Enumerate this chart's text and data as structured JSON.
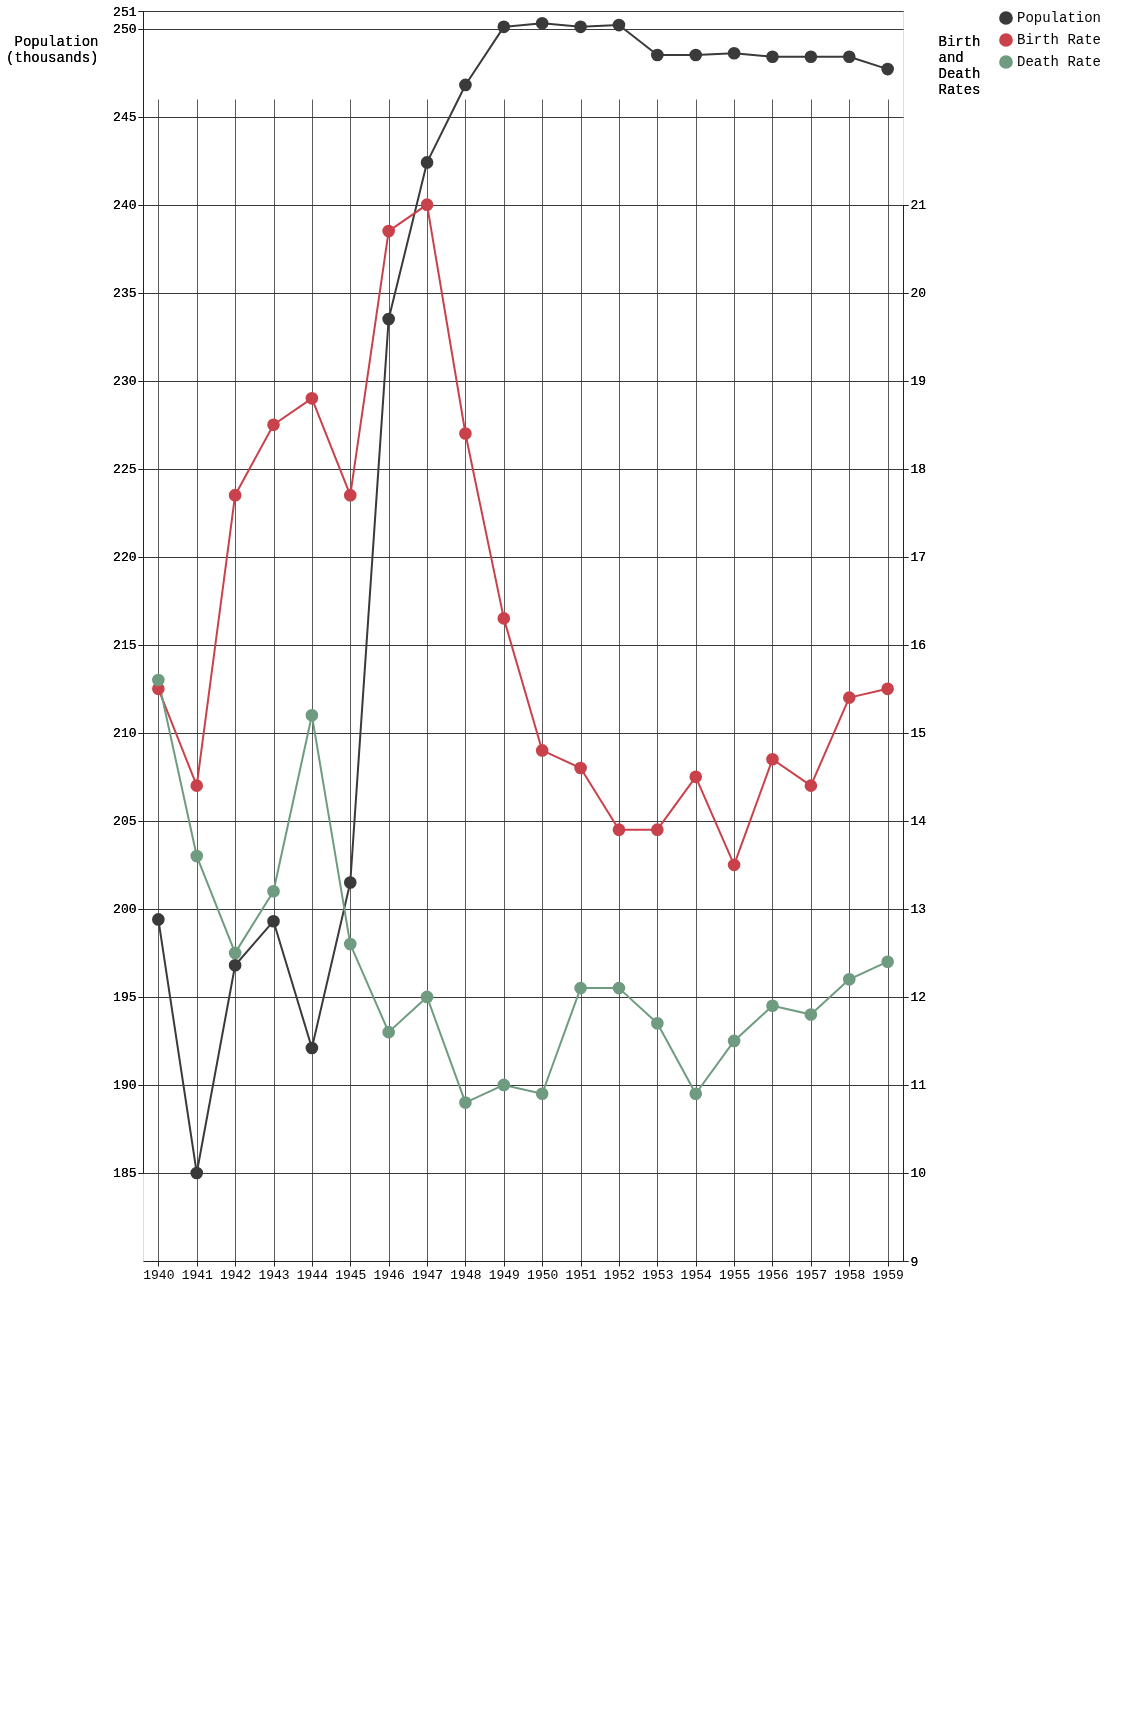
{
  "chart_data": {
    "type": "line",
    "ylabel": "Population (thousands)",
    "y2label": "Birth and Death Rates",
    "categories": [
      "1940",
      "1941",
      "1942",
      "1943",
      "1944",
      "1945",
      "1946",
      "1947",
      "1948",
      "1949",
      "1950",
      "1951",
      "1952",
      "1953",
      "1954",
      "1955",
      "1956",
      "1957",
      "1958",
      "1959"
    ],
    "series": [
      {
        "name": "Population",
        "color": "#3a3a3a",
        "values": [
          199.4,
          185.0,
          196.8,
          199.3,
          192.1,
          201.5,
          233.5,
          242.4,
          246.8,
          250.1,
          250.3,
          250.1,
          250.2,
          248.5,
          248.5,
          248.6,
          248.4,
          248.4,
          248.4,
          247.7
        ]
      },
      {
        "name": "Birth Rate",
        "color": "#c9424b",
        "axis": "y2",
        "values": [
          15.5,
          14.4,
          17.7,
          18.5,
          18.8,
          17.7,
          20.7,
          21.0,
          18.4,
          16.3,
          14.8,
          14.6,
          13.9,
          13.9,
          14.5,
          13.5,
          14.7,
          14.4,
          15.4,
          15.5
        ]
      },
      {
        "name": "Death Rate",
        "color": "#6f9b80",
        "axis": "y2",
        "values": [
          15.6,
          13.6,
          12.5,
          13.2,
          15.2,
          12.6,
          11.6,
          12.0,
          10.8,
          11.0,
          10.9,
          12.1,
          12.1,
          11.7,
          10.9,
          11.5,
          11.9,
          11.8,
          12.2,
          12.4
        ]
      }
    ],
    "ylim": [
      185,
      251
    ],
    "yticks": [
      185,
      190,
      195,
      200,
      205,
      210,
      215,
      220,
      225,
      230,
      235,
      240,
      245,
      250,
      251
    ],
    "y2lim": [
      9,
      21
    ],
    "y2ticks": [
      9,
      10,
      11,
      12,
      13,
      14,
      15,
      16,
      17,
      18,
      19,
      20,
      21
    ],
    "grid": true,
    "legend": "right",
    "marker": "circle",
    "line_style": "solid"
  }
}
